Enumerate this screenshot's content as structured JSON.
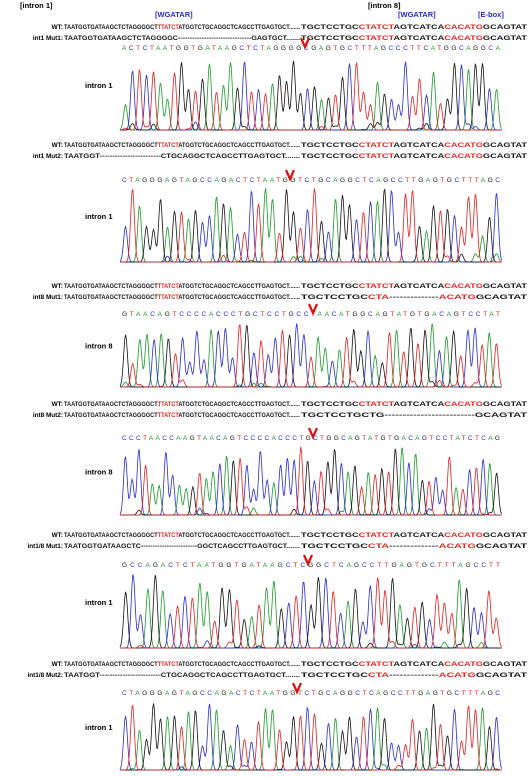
{
  "header": {
    "intron1": "[intron 1]",
    "wgatar1": "[WGATAR]",
    "intron8": "[intron 8]",
    "wgatar2": "[WGATAR]",
    "ebox": "[E-box]"
  },
  "panels": [
    {
      "rows": [
        {
          "label": "WT:",
          "left": [
            {
              "text": "TAATGGTGATAAGCTCTAGGGGCT",
              "highlight": false
            },
            {
              "text": "TTATCT",
              "highlight": true
            },
            {
              "text": "ATGGTCTGCAGGCTCAGCCTTGAGTGCT.......",
              "highlight": false
            }
          ],
          "right": [
            {
              "text": "TGCTCCTGC",
              "highlight": false
            },
            {
              "text": "CTATCT",
              "highlight": true
            },
            {
              "text": "AGTCATCA",
              "highlight": false
            },
            {
              "text": "CACATG",
              "highlight": true
            },
            {
              "text": "GCAGTAT",
              "highlight": false
            }
          ]
        },
        {
          "label": "int1 Mut1:",
          "left": [
            {
              "text": "TAATGGTGATAAGCTCTAGGGGC-------------------------------GAGTGCT.......",
              "highlight": false
            }
          ],
          "right": [
            {
              "text": "TGCTCCTGC",
              "highlight": false
            },
            {
              "text": "CTATCT",
              "highlight": true
            },
            {
              "text": "AGTCATCA",
              "highlight": false
            },
            {
              "text": "CACATG",
              "highlight": true
            },
            {
              "text": "GCAGTAT",
              "highlight": false
            }
          ]
        }
      ],
      "bases": "ACTCTAATGGTGATAAGCTCTAGGGGCGAGTGCTTTAGCCCTTCATGGCAGGCA",
      "intron": "intron 1"
    },
    {
      "rows": [
        {
          "label": "WT:",
          "left": [
            {
              "text": "TAATGGTGATAAGCTCTAGGGGCT",
              "highlight": false
            },
            {
              "text": "TTATCT",
              "highlight": true
            },
            {
              "text": "ATGGTCTGCAGGCTCAGCCTTGAGTGCT.......",
              "highlight": false
            }
          ],
          "right": [
            {
              "text": "TGCTCCTGC",
              "highlight": false
            },
            {
              "text": "CTATCT",
              "highlight": true
            },
            {
              "text": "AGTCATCA",
              "highlight": false
            },
            {
              "text": "CACATG",
              "highlight": true
            },
            {
              "text": "GCAGTAT",
              "highlight": false
            }
          ]
        },
        {
          "label": "int1 Mut2:",
          "left": [
            {
              "text": "TAATGGT------------------------CTGCAGGCTCAGCCTTGAGTGCT.......",
              "highlight": false
            }
          ],
          "right": [
            {
              "text": "TGCTCCTGC",
              "highlight": false
            },
            {
              "text": "CTATCT",
              "highlight": true
            },
            {
              "text": "AGTCATCA",
              "highlight": false
            },
            {
              "text": "CACATG",
              "highlight": true
            },
            {
              "text": "GCAGTAT",
              "highlight": false
            }
          ]
        }
      ],
      "bases": "CTAGGGAGTAGCCAGACTCTAATGGTCTGCAGGCTCAGCCTTGAGTGCTTTAGC",
      "intron": "intron 1"
    },
    {
      "rows": [
        {
          "label": "WT:",
          "left": [
            {
              "text": "TAATGGTGATAAGCTCTAGGGGCT",
              "highlight": false
            },
            {
              "text": "TTATCT",
              "highlight": true
            },
            {
              "text": "ATGGTCTGCAGGCTCAGCCTTGAGTGCT.......",
              "highlight": false
            }
          ],
          "right": [
            {
              "text": "TGCTCCTGC",
              "highlight": false
            },
            {
              "text": "CTATCT",
              "highlight": true
            },
            {
              "text": "AGTCATCA",
              "highlight": false
            },
            {
              "text": "CACATG",
              "highlight": true
            },
            {
              "text": "GCAGTAT",
              "highlight": false
            }
          ]
        },
        {
          "label": "int8 Mut1:",
          "left": [
            {
              "text": "TAATGGTGATAAGCTCTAGGGGCT",
              "highlight": false
            },
            {
              "text": "TTATCT",
              "highlight": true
            },
            {
              "text": "ATGGTCTGCAGGCTCAGCCTTGAGTGCT.......",
              "highlight": false
            }
          ],
          "right": [
            {
              "text": "TGCTCCTGC",
              "highlight": false
            },
            {
              "text": "CTA",
              "highlight": true
            },
            {
              "text": "--------------",
              "highlight": false
            },
            {
              "text": "ACATG",
              "highlight": true
            },
            {
              "text": "GCAGTAT",
              "highlight": false
            }
          ]
        }
      ],
      "bases": "GTAACAGTCCCCACCCTGCTCCTGCCTAACATGGCAGTATGTGACAGTCCTAT",
      "intron": "intron 8"
    },
    {
      "rows": [
        {
          "label": "WT:",
          "left": [
            {
              "text": "TAATGGTGATAAGCTCTAGGGGCT",
              "highlight": false
            },
            {
              "text": "TTATCT",
              "highlight": true
            },
            {
              "text": "ATGGTCTGCAGGCTCAGCCTTGAGTGCT.......",
              "highlight": false
            }
          ],
          "right": [
            {
              "text": "TGCTCCTGC",
              "highlight": false
            },
            {
              "text": "CTATCT",
              "highlight": true
            },
            {
              "text": "AGTCATCA",
              "highlight": false
            },
            {
              "text": "CACATG",
              "highlight": true
            },
            {
              "text": "GCAGTAT",
              "highlight": false
            }
          ]
        },
        {
          "label": "int8 Mut2:",
          "left": [
            {
              "text": "TAATGGTGATAAGCTCTAGGGGCT",
              "highlight": false
            },
            {
              "text": "TTATCT",
              "highlight": true
            },
            {
              "text": "ATGGTCTGCAGGCTCAGCCTTGAGTGCT.......",
              "highlight": false
            }
          ],
          "right": [
            {
              "text": "TGCTCCTGCTG-------------------------GCAGTAT",
              "highlight": false
            }
          ]
        }
      ],
      "bases": "CCCTAACCAAGTAACAGTCCCCACCCTGCTGGCAGTATGTGACAGTCCTATCTCAG",
      "intron": "intron 8"
    },
    {
      "rows": [
        {
          "label": "WT:",
          "left": [
            {
              "text": "TAATGGTGATAAGCTCTAGGGGCT",
              "highlight": false
            },
            {
              "text": "TTATCT",
              "highlight": true
            },
            {
              "text": "ATGGTCTGCAGGCTCAGCCTTGAGTGCT.......",
              "highlight": false
            }
          ],
          "right": [
            {
              "text": "TGCTCCTGC",
              "highlight": false
            },
            {
              "text": "CTATCT",
              "highlight": true
            },
            {
              "text": "AGTCATCA",
              "highlight": false
            },
            {
              "text": "CACATG",
              "highlight": true
            },
            {
              "text": "GCAGTAT",
              "highlight": false
            }
          ]
        },
        {
          "label": "int1/8 Mut1:",
          "left": [
            {
              "text": "TAATGGTGATAAGCTC------------------------GGCTCAGCCTTGAGTGCT.......",
              "highlight": false
            }
          ],
          "right": [
            {
              "text": "TGCTCCTGC",
              "highlight": false
            },
            {
              "text": "CTA",
              "highlight": true
            },
            {
              "text": "--------------",
              "highlight": false
            },
            {
              "text": "ACATG",
              "highlight": true
            },
            {
              "text": "GCAGTAT",
              "highlight": false
            }
          ]
        }
      ],
      "bases": "GCCAGACTCTAATGGTGATAAGCTCGGCTCAGCCTTGAGTGCTTTAGCCTT",
      "intron": "intron 1"
    },
    {
      "rows": [
        {
          "label": "WT:",
          "left": [
            {
              "text": "TAATGGTGATAAGCTCTAGGGGCT",
              "highlight": false
            },
            {
              "text": "TTATCT",
              "highlight": true
            },
            {
              "text": "ATGGTCTGCAGGCTCAGCCTTGAGTGCT.......",
              "highlight": false
            }
          ],
          "right": [
            {
              "text": "TGCTCCTGC",
              "highlight": false
            },
            {
              "text": "CTATCT",
              "highlight": true
            },
            {
              "text": "AGTCATCA",
              "highlight": false
            },
            {
              "text": "CACATG",
              "highlight": true
            },
            {
              "text": "GCAGTAT",
              "highlight": false
            }
          ]
        },
        {
          "label": "int1/8 Mut2:",
          "left": [
            {
              "text": "TAATGGT------------------------CTGCAGGCTCAGCCTTGAGTGCT.......",
              "highlight": false
            }
          ],
          "right": [
            {
              "text": "TGCTCCTGC",
              "highlight": false
            },
            {
              "text": "CTA",
              "highlight": true
            },
            {
              "text": "--------------",
              "highlight": false
            },
            {
              "text": "ACATG",
              "highlight": true
            },
            {
              "text": "GCAGTAT",
              "highlight": false
            }
          ]
        }
      ],
      "bases": "CTAGGGAGTAGCCAGACTCTAATGGTCTGCAGGCTCAGCCTTGAGTGCTTTAGC",
      "intron": "intron 1"
    }
  ]
}
